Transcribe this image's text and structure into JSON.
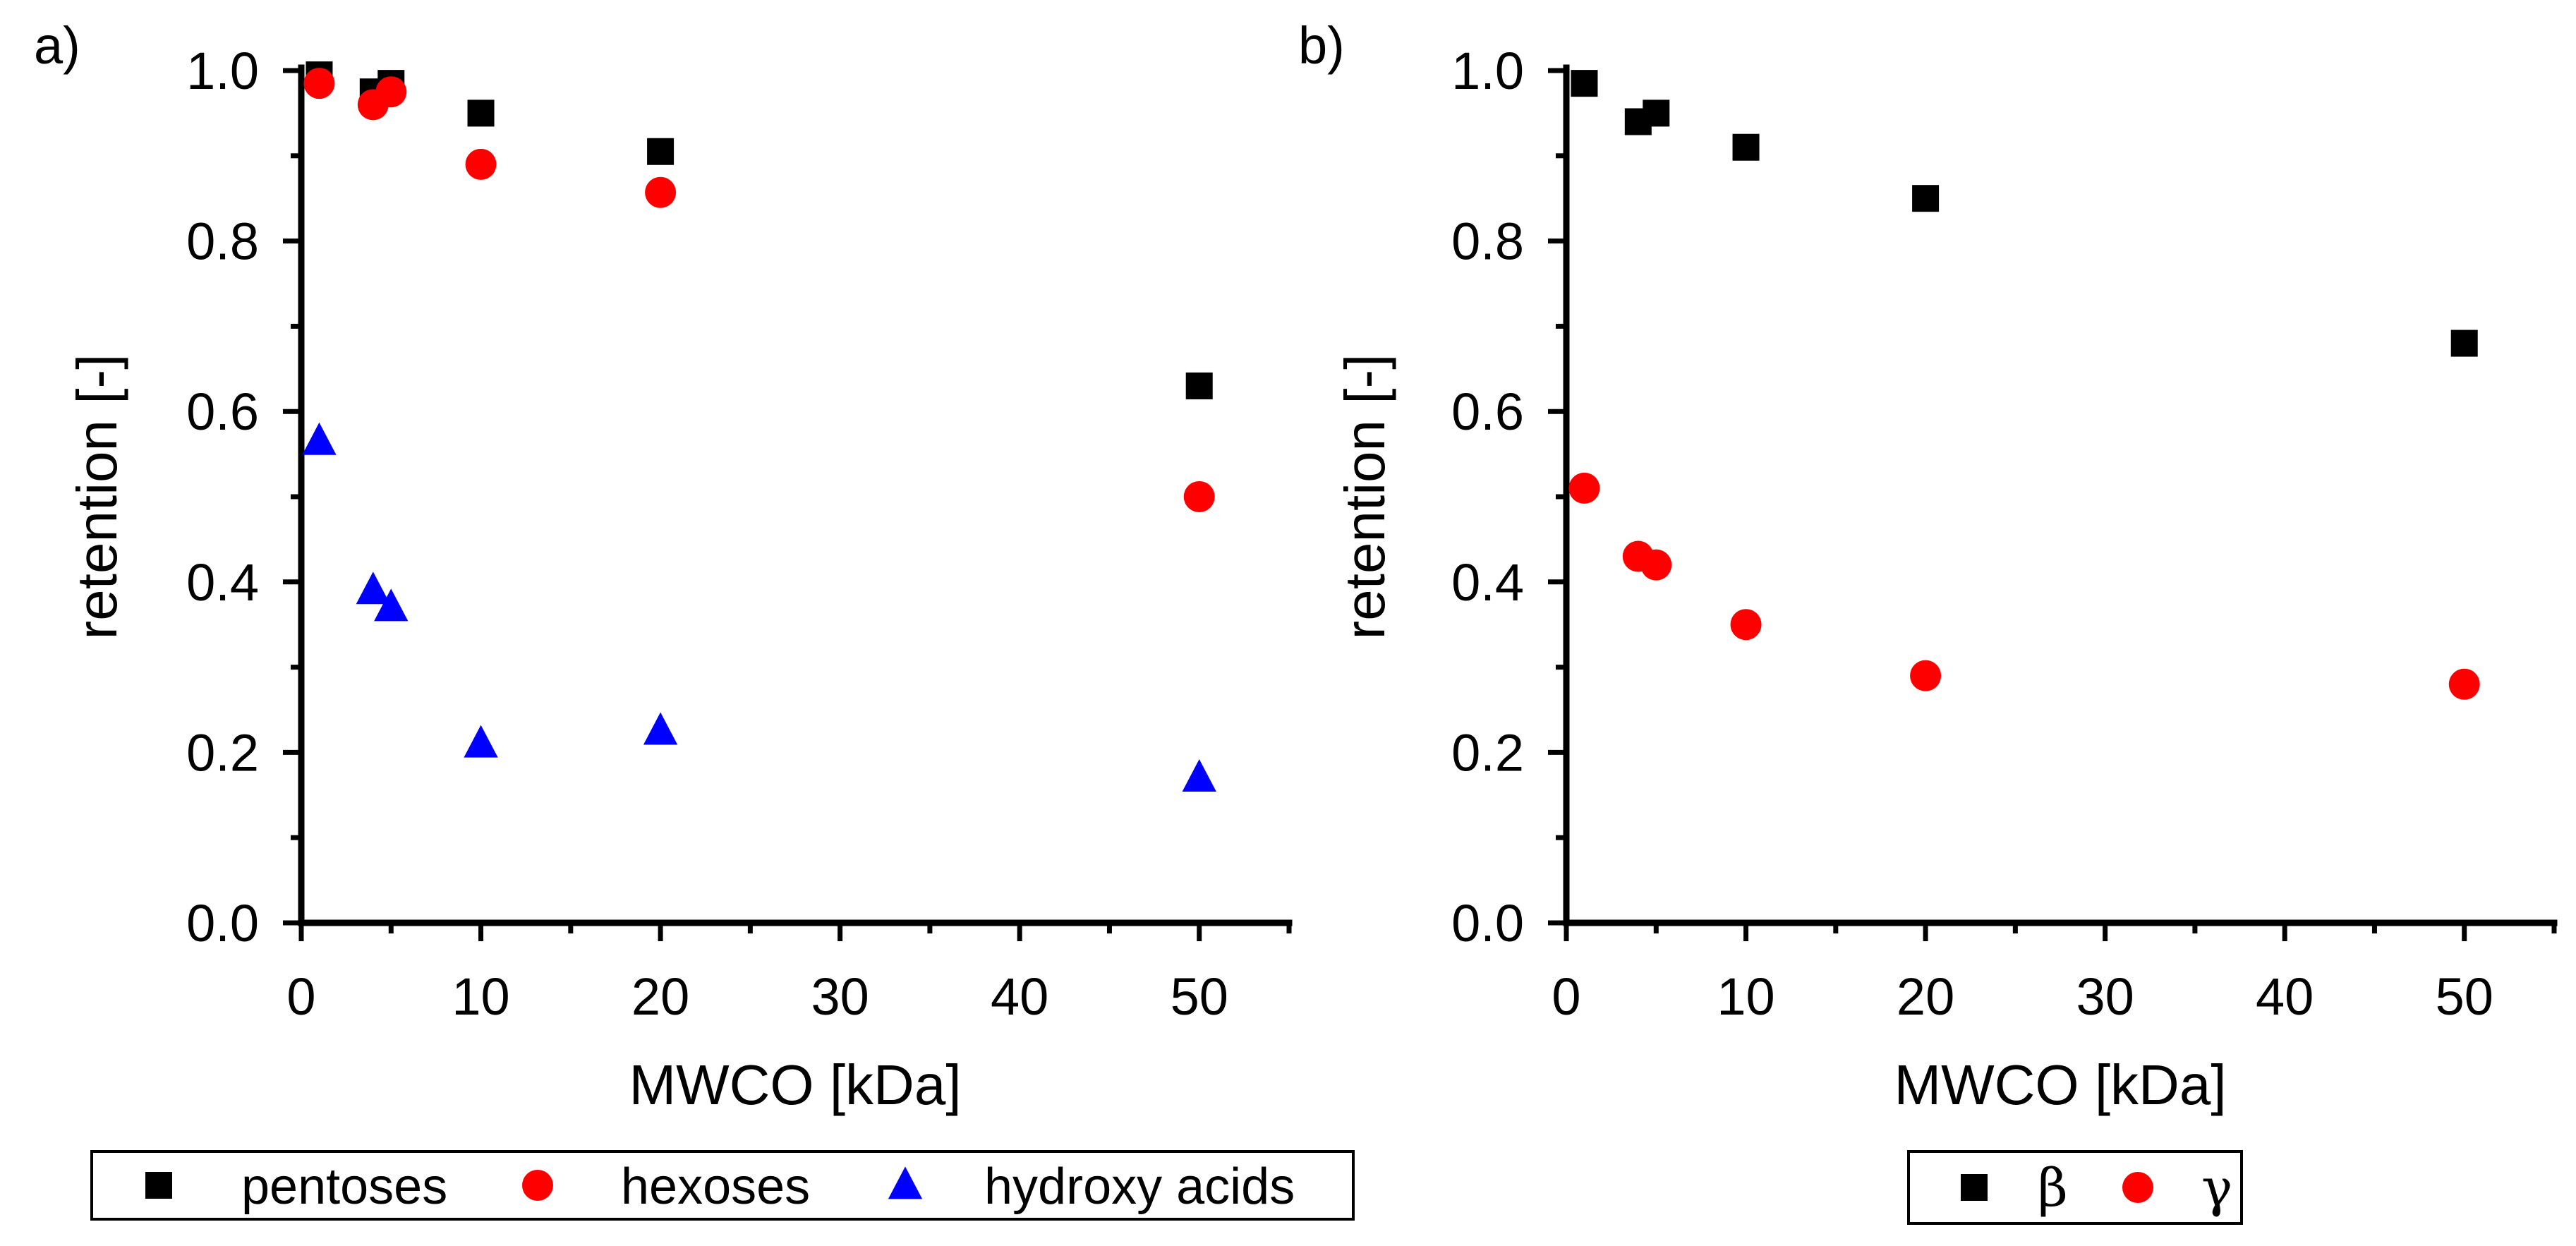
{
  "chart_data": [
    {
      "type": "scatter",
      "panel_label": "a)",
      "xlabel": "MWCO [kDa]",
      "ylabel": "retention [-]",
      "xlim": [
        0,
        55
      ],
      "ylim": [
        0,
        1.0
      ],
      "x_ticks": [
        "0",
        "10",
        "20",
        "30",
        "40",
        "50"
      ],
      "y_ticks": [
        "0.0",
        "0.2",
        "0.4",
        "0.6",
        "0.8",
        "1.0"
      ],
      "legend_position": "bottom",
      "series": [
        {
          "name": "pentoses",
          "marker": "square",
          "color": "#000000",
          "x": [
            1,
            4,
            5,
            10,
            20,
            50
          ],
          "values": [
            0.995,
            0.975,
            0.985,
            0.95,
            0.905,
            0.63
          ]
        },
        {
          "name": "hexoses",
          "marker": "circle",
          "color": "#ff0000",
          "x": [
            1,
            4,
            5,
            10,
            20,
            50
          ],
          "values": [
            0.985,
            0.96,
            0.975,
            0.89,
            0.857,
            0.5
          ]
        },
        {
          "name": "hydroxy acids",
          "marker": "triangle",
          "color": "#0000ff",
          "x": [
            1,
            4,
            5,
            10,
            20,
            50
          ],
          "values": [
            0.565,
            0.39,
            0.37,
            0.21,
            0.225,
            0.17
          ]
        }
      ]
    },
    {
      "type": "scatter",
      "panel_label": "b)",
      "xlabel": "MWCO [kDa]",
      "ylabel": "retention [-]",
      "xlim": [
        0,
        55
      ],
      "ylim": [
        0,
        1.0
      ],
      "x_ticks": [
        "0",
        "10",
        "20",
        "30",
        "40",
        "50"
      ],
      "y_ticks": [
        "0.0",
        "0.2",
        "0.4",
        "0.6",
        "0.8",
        "1.0"
      ],
      "legend_position": "bottom",
      "series": [
        {
          "name": "β",
          "marker": "square",
          "color": "#000000",
          "x": [
            1,
            4,
            5,
            10,
            20,
            50
          ],
          "values": [
            0.985,
            0.94,
            0.95,
            0.91,
            0.85,
            0.68
          ]
        },
        {
          "name": "γ",
          "marker": "circle",
          "color": "#ff0000",
          "x": [
            1,
            4,
            5,
            10,
            20,
            50
          ],
          "values": [
            0.51,
            0.43,
            0.42,
            0.35,
            0.29,
            0.28
          ]
        }
      ]
    }
  ]
}
